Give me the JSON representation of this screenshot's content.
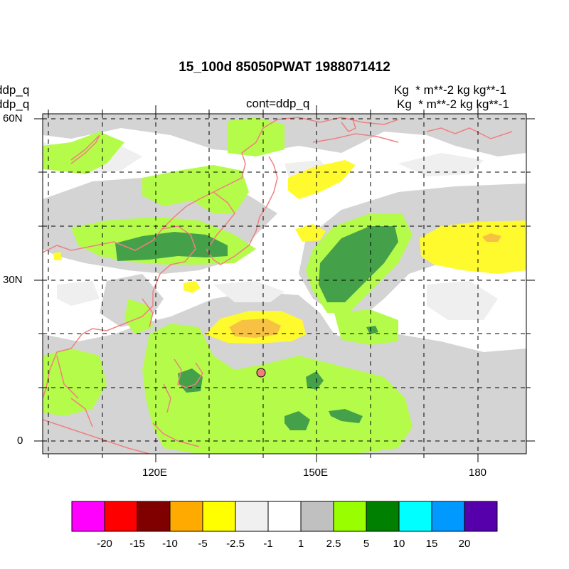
{
  "title": "15_100d 85050PWAT  1988071412",
  "left_labels": [
    "ddp_q",
    "ddp_q"
  ],
  "right_labels": [
    "Kg  * m**-2 kg kg**-1",
    "Kg  * m**-2 kg kg**-1"
  ],
  "center_label": "cont=ddp_q",
  "lat_labels": [
    "60N",
    "30N",
    "0"
  ],
  "lon_labels": [
    "120E",
    "150E",
    "180"
  ],
  "colorbar": {
    "colors": [
      "#ff00ff",
      "#ff0000",
      "#800000",
      "#ffaa00",
      "#ffff00",
      "#f0f0f0",
      "#ffffff",
      "#c0c0c0",
      "#99ff00",
      "#008000",
      "#00ffff",
      "#0099ff",
      "#5500aa"
    ],
    "labels": [
      "-20",
      "-15",
      "-10",
      "-5",
      "-2.5",
      "-1",
      "1",
      "2.5",
      "5",
      "10",
      "15",
      "20"
    ]
  },
  "palette": {
    "coast": "#f08080",
    "grey": "#d4d4d4",
    "light_grey": "#efefef",
    "green_light": "#b5fb4a",
    "green_dark": "#45a04a",
    "yellow": "#fffa2e",
    "orange": "#f7c144"
  }
}
